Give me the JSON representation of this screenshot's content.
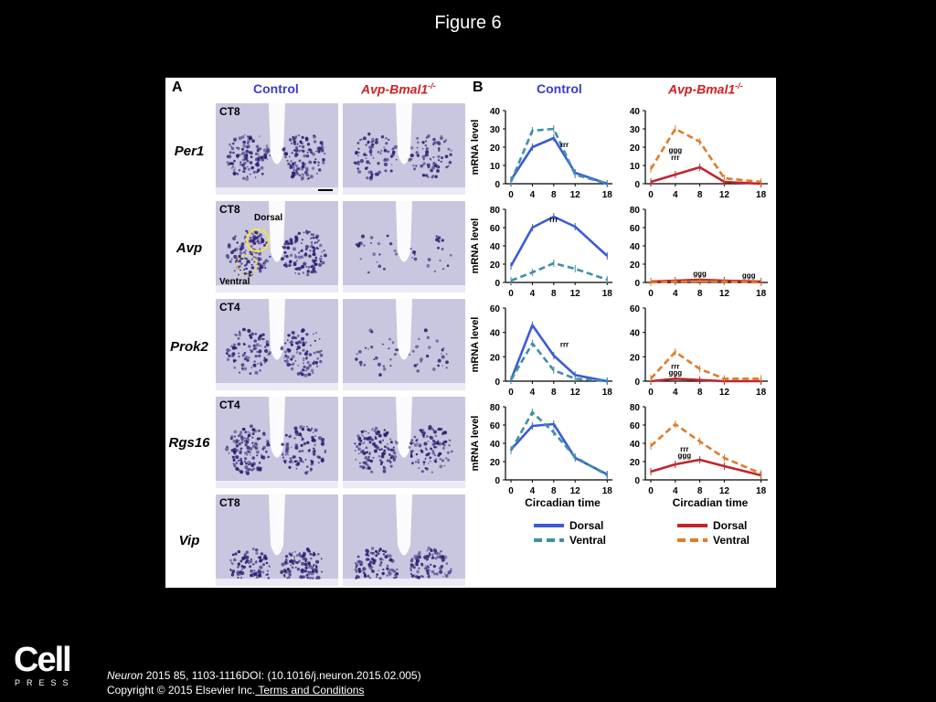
{
  "slide": {
    "title": "Figure 6"
  },
  "panel_a": {
    "letter": "A",
    "col_control": "Control",
    "col_mutant_main": "Avp-Bmal1",
    "col_mutant_sup": "-/-",
    "rows": [
      {
        "gene": "Per1",
        "ct": "CT8"
      },
      {
        "gene": "Avp",
        "ct": "CT8"
      },
      {
        "gene": "Prok2",
        "ct": "CT4"
      },
      {
        "gene": "Rgs16",
        "ct": "CT4"
      },
      {
        "gene": "Vip",
        "ct": "CT8"
      }
    ],
    "dorsal_label": "Dorsal",
    "ventral_label": "Ventral"
  },
  "panel_b": {
    "letter": "B",
    "col_control": "Control",
    "col_mutant_main": "Avp-Bmal1",
    "col_mutant_sup": "-/-"
  },
  "legend": {
    "control_dorsal": "Dorsal",
    "control_ventral": "Ventral",
    "mutant_dorsal": "Dorsal",
    "mutant_ventral": "Ventral"
  },
  "colors": {
    "control_dorsal": "#3b5bd6",
    "control_ventral": "#3f8fa8",
    "mutant_dorsal": "#c0272d",
    "mutant_ventral": "#e07b2a",
    "control_header": "#3b3bd0",
    "mutant_header": "#d02020",
    "tissue": "#c9c6e0",
    "stain": "#2a1f6e"
  },
  "chart_data": [
    {
      "type": "line",
      "panel": "Per1 Control",
      "ylabel": "mRNA level",
      "xlabel": "",
      "ylim": [
        0,
        40
      ],
      "yticks": [
        0,
        10,
        20,
        30,
        40
      ],
      "x": [
        0,
        4,
        8,
        12,
        18
      ],
      "series": [
        {
          "name": "Dorsal",
          "values": [
            2,
            20,
            25,
            6,
            0
          ]
        },
        {
          "name": "Ventral",
          "values": [
            1,
            29,
            30,
            5,
            0
          ]
        }
      ],
      "annotations": [
        "rrr"
      ]
    },
    {
      "type": "line",
      "panel": "Per1 Avp-Bmal1-/-",
      "ylabel": "",
      "xlabel": "",
      "ylim": [
        0,
        40
      ],
      "yticks": [
        0,
        10,
        20,
        30,
        40
      ],
      "x": [
        0,
        4,
        8,
        12,
        18
      ],
      "series": [
        {
          "name": "Dorsal",
          "values": [
            1,
            5,
            9,
            1,
            0
          ]
        },
        {
          "name": "Ventral",
          "values": [
            8,
            30,
            23,
            3,
            1
          ]
        }
      ],
      "annotations": [
        "ggg",
        "rrr"
      ]
    },
    {
      "type": "line",
      "panel": "Avp Control",
      "ylabel": "mRNA level",
      "xlabel": "",
      "ylim": [
        0,
        80
      ],
      "yticks": [
        0,
        20,
        40,
        60,
        80
      ],
      "x": [
        0,
        4,
        8,
        12,
        18
      ],
      "series": [
        {
          "name": "Dorsal",
          "values": [
            18,
            60,
            72,
            61,
            29
          ]
        },
        {
          "name": "Ventral",
          "values": [
            2,
            11,
            21,
            15,
            3
          ]
        }
      ],
      "annotations": [
        "rrr"
      ]
    },
    {
      "type": "line",
      "panel": "Avp Avp-Bmal1-/-",
      "ylabel": "",
      "xlabel": "",
      "ylim": [
        0,
        80
      ],
      "yticks": [
        0,
        20,
        40,
        60,
        80
      ],
      "x": [
        0,
        4,
        8,
        12,
        18
      ],
      "series": [
        {
          "name": "Dorsal",
          "values": [
            1,
            2,
            3,
            2,
            1
          ]
        },
        {
          "name": "Ventral",
          "values": [
            0,
            1,
            1,
            1,
            0
          ]
        }
      ],
      "annotations": [
        "ggg",
        "ggg"
      ]
    },
    {
      "type": "line",
      "panel": "Prok2 Control",
      "ylabel": "mRNA level",
      "xlabel": "",
      "ylim": [
        0,
        60
      ],
      "yticks": [
        0,
        20,
        40,
        60
      ],
      "x": [
        0,
        4,
        8,
        12,
        18
      ],
      "series": [
        {
          "name": "Dorsal",
          "values": [
            1,
            46,
            21,
            5,
            0
          ]
        },
        {
          "name": "Ventral",
          "values": [
            1,
            31,
            9,
            2,
            0
          ]
        }
      ],
      "annotations": [
        "rrr"
      ]
    },
    {
      "type": "line",
      "panel": "Prok2 Avp-Bmal1-/-",
      "ylabel": "",
      "xlabel": "",
      "ylim": [
        0,
        60
      ],
      "yticks": [
        0,
        20,
        40,
        60
      ],
      "x": [
        0,
        4,
        8,
        12,
        18
      ],
      "series": [
        {
          "name": "Dorsal",
          "values": [
            0,
            2,
            1,
            0,
            0
          ]
        },
        {
          "name": "Ventral",
          "values": [
            2,
            24,
            10,
            2,
            2
          ]
        }
      ],
      "annotations": [
        "rrr",
        "ggg"
      ]
    },
    {
      "type": "line",
      "panel": "Rgs16 Control",
      "ylabel": "mRNA level",
      "xlabel": "Circadian time",
      "ylim": [
        0,
        80
      ],
      "yticks": [
        0,
        20,
        40,
        60,
        80
      ],
      "x": [
        0,
        4,
        8,
        12,
        18
      ],
      "series": [
        {
          "name": "Dorsal",
          "values": [
            33,
            59,
            61,
            24,
            6
          ]
        },
        {
          "name": "Ventral",
          "values": [
            32,
            74,
            52,
            25,
            5
          ]
        }
      ],
      "annotations": []
    },
    {
      "type": "line",
      "panel": "Rgs16 Avp-Bmal1-/-",
      "ylabel": "",
      "xlabel": "Circadian time",
      "ylim": [
        0,
        80
      ],
      "yticks": [
        0,
        20,
        40,
        60,
        80
      ],
      "x": [
        0,
        4,
        8,
        12,
        18
      ],
      "series": [
        {
          "name": "Dorsal",
          "values": [
            9,
            17,
            22,
            15,
            5
          ]
        },
        {
          "name": "Ventral",
          "values": [
            37,
            61,
            42,
            24,
            7
          ]
        }
      ],
      "annotations": [
        "rrr",
        "ggg"
      ]
    }
  ],
  "footer": {
    "logo_text": "Cell",
    "logo_sub": "PRESS",
    "citation_journal": "Neuron",
    "citation_rest": " 2015 85, 1103-1116DOI: (10.1016/j.neuron.2015.02.005)",
    "copyright": "Copyright © 2015 Elsevier Inc.",
    "terms": " Terms and Conditions"
  }
}
